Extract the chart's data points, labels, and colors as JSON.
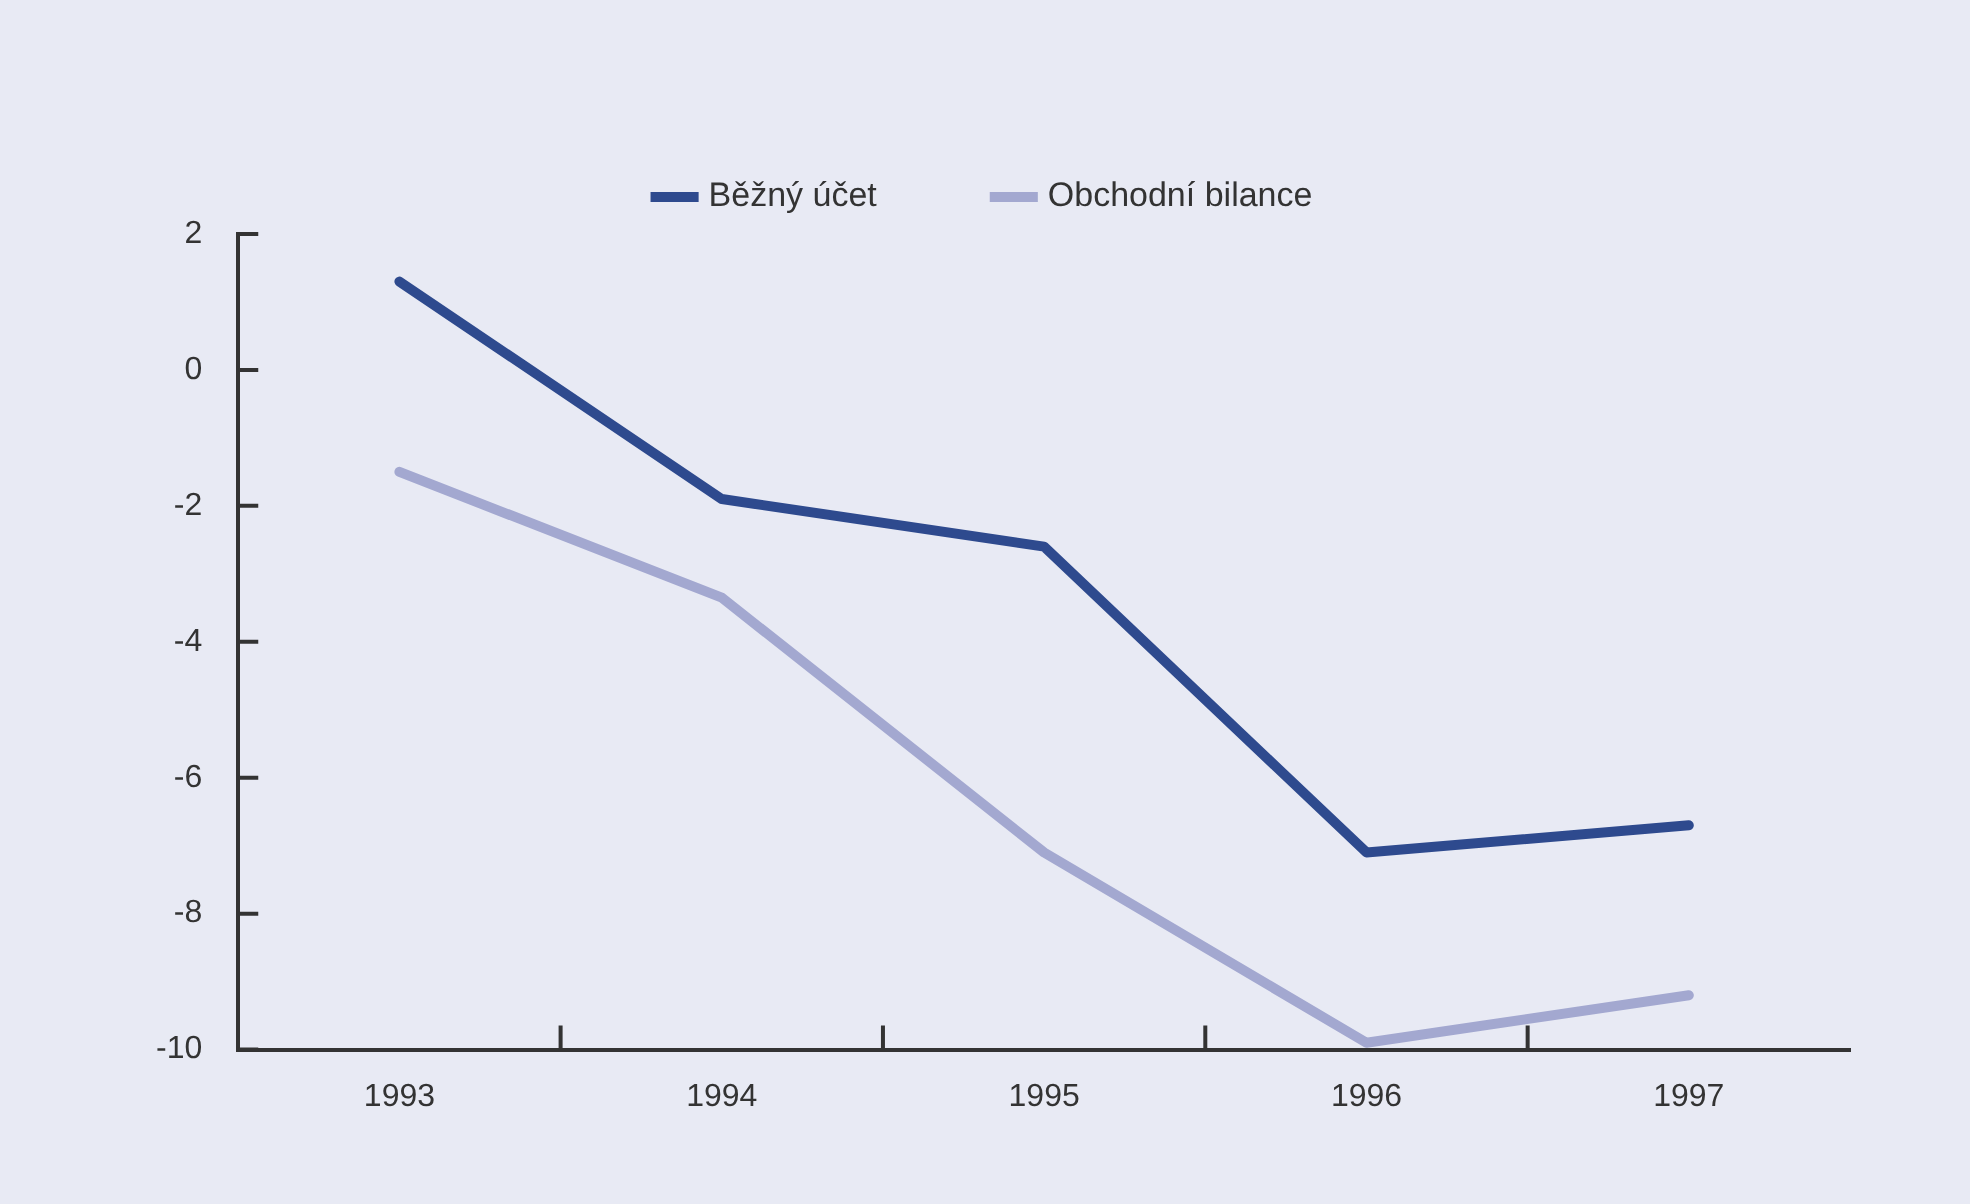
{
  "chart_data": {
    "type": "line",
    "categories": [
      "1993",
      "1994",
      "1995",
      "1996",
      "1997"
    ],
    "series": [
      {
        "name": "Běžný účet",
        "color": "#2e4a8e",
        "values": [
          1.3,
          -1.9,
          -2.6,
          -7.1,
          -6.7
        ]
      },
      {
        "name": "Obchodní bilance",
        "color": "#a3a8d0",
        "values": [
          -1.5,
          -3.35,
          -7.1,
          -9.9,
          -9.2
        ]
      }
    ],
    "ylim": [
      -10,
      2
    ],
    "yticks": [
      -10,
      -8,
      -6,
      -4,
      -2,
      0,
      2
    ],
    "grid": false,
    "legend": "top",
    "marker": "none",
    "line_style": "solid"
  }
}
